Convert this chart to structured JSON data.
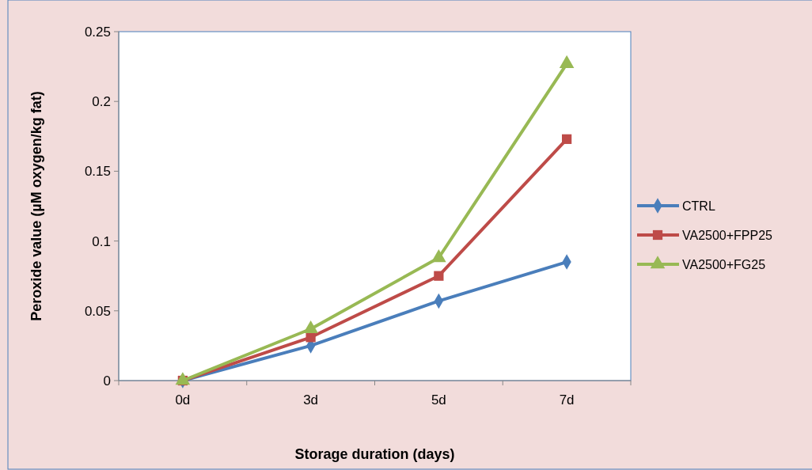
{
  "chart_data": {
    "type": "line",
    "xlabel": "Storage duration (days)",
    "ylabel": "Peroxide value (µM oxygen/kg fat)",
    "categories": [
      "0d",
      "3d",
      "5d",
      "7d"
    ],
    "ylim": [
      0,
      0.25
    ],
    "yticks": [
      0,
      0.05,
      0.1,
      0.15,
      0.2,
      0.25
    ],
    "grid": false,
    "legend": "right",
    "series": [
      {
        "name": "CTRL",
        "color": "#4a7ebb",
        "marker": "diamond",
        "values": [
          0,
          0.025,
          0.057,
          0.085
        ]
      },
      {
        "name": "VA2500+FPP25",
        "color": "#be4b48",
        "marker": "square",
        "values": [
          0,
          0.031,
          0.075,
          0.173
        ]
      },
      {
        "name": "VA2500+FG25",
        "color": "#98b954",
        "marker": "triangle",
        "values": [
          0,
          0.037,
          0.088,
          0.227
        ]
      }
    ]
  }
}
